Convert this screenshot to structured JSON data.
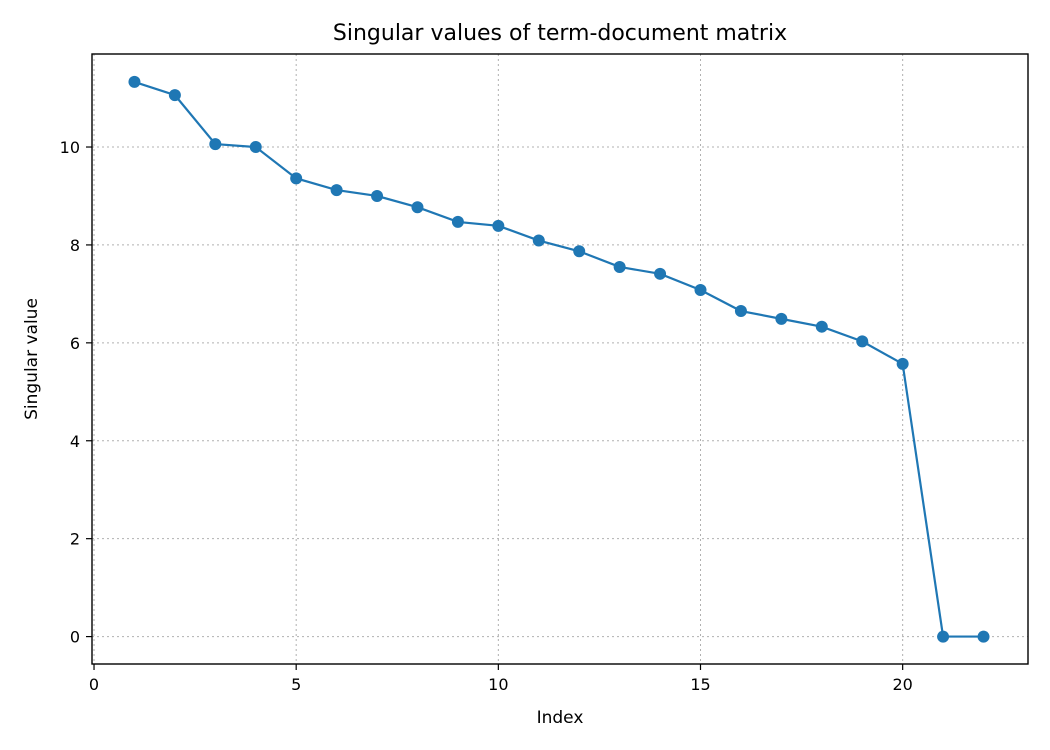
{
  "chart_data": {
    "type": "line",
    "title": "Singular values of term-document matrix",
    "xlabel": "Index",
    "ylabel": "Singular value",
    "xlim": [
      -0.05,
      23.1
    ],
    "ylim": [
      -0.56,
      11.9
    ],
    "xticks": [
      0,
      5,
      10,
      15,
      20
    ],
    "yticks": [
      0,
      2,
      4,
      6,
      8,
      10
    ],
    "grid": true,
    "series": [
      {
        "color": "#1f77b4",
        "marker": "circle",
        "x": [
          1,
          2,
          3,
          4,
          5,
          6,
          7,
          8,
          9,
          10,
          11,
          12,
          13,
          14,
          15,
          16,
          17,
          18,
          19,
          20,
          21,
          22
        ],
        "y": [
          11.33,
          11.06,
          10.06,
          10.0,
          9.36,
          9.12,
          9.0,
          8.77,
          8.47,
          8.39,
          8.09,
          7.87,
          7.55,
          7.41,
          7.08,
          6.65,
          6.49,
          6.33,
          6.03,
          5.57,
          0.0,
          0.0
        ]
      }
    ]
  }
}
